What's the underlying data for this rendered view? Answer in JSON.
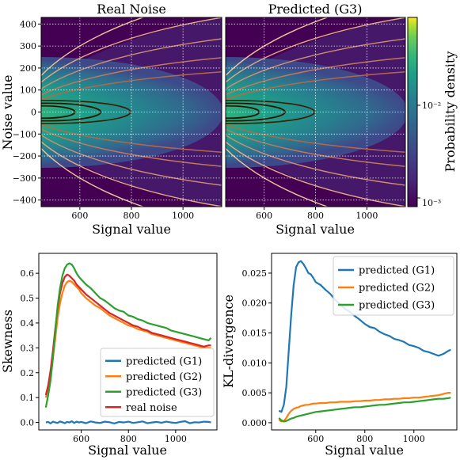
{
  "colors": {
    "g1": "#1f77b4",
    "g2": "#ff7f0e",
    "g3": "#2ca02c",
    "real": "#d62728",
    "legend_border": "#cccccc"
  },
  "chart_data": [
    {
      "type": "heatmap",
      "title": "Real Noise",
      "xlabel": "Signal value",
      "ylabel": "Noise value",
      "xlim": [
        450,
        1150
      ],
      "ylim": [
        -430,
        430
      ],
      "xticks": [
        "600",
        "800",
        "1000"
      ],
      "yticks": [
        "400",
        "300",
        "200",
        "100",
        "0",
        "−100",
        "−200",
        "−300",
        "−400"
      ],
      "grid": true,
      "colormap": "viridis"
    },
    {
      "type": "heatmap",
      "title": "Predicted (G3)",
      "xlabel": "Signal value",
      "ylabel": "",
      "xlim": [
        450,
        1150
      ],
      "ylim": [
        -430,
        430
      ],
      "xticks": [
        "600",
        "800",
        "1000"
      ],
      "grid": true,
      "colormap": "viridis",
      "colorbar": {
        "label": "Probability density",
        "scale": "log",
        "ticks": [
          "10⁻²",
          "10⁻³"
        ]
      }
    },
    {
      "type": "line",
      "xlabel": "Signal value",
      "ylabel": "Skewness",
      "xlim": [
        420,
        1175
      ],
      "ylim": [
        -0.03,
        0.68
      ],
      "xticks": [
        "600",
        "800",
        "1000"
      ],
      "yticks": [
        "0.0",
        "0.1",
        "0.2",
        "0.3",
        "0.4",
        "0.5",
        "0.6"
      ],
      "grid": false,
      "legend": "bottom-right",
      "x": [
        450,
        460,
        470,
        480,
        490,
        500,
        510,
        520,
        530,
        540,
        550,
        560,
        570,
        580,
        590,
        600,
        620,
        640,
        660,
        680,
        700,
        720,
        740,
        760,
        780,
        800,
        820,
        840,
        860,
        880,
        900,
        920,
        940,
        960,
        980,
        1000,
        1020,
        1040,
        1060,
        1080,
        1100,
        1120,
        1140,
        1150
      ],
      "series": [
        {
          "name": "predicted (G1)",
          "values": [
            0.0,
            0.002,
            -0.004,
            0.003,
            0.0,
            -0.002,
            0.004,
            0.001,
            -0.003,
            0.002,
            0.0,
            0.005,
            -0.002,
            0.003,
            0.0,
            0.002,
            -0.003,
            0.004,
            0.0,
            -0.002,
            0.003,
            0.001,
            -0.004,
            0.002,
            0.0,
            0.003,
            -0.002,
            0.001,
            0.004,
            -0.003,
            0.0,
            0.002,
            -0.001,
            0.003,
            0.0,
            -0.002,
            0.002,
            0.005,
            -0.003,
            0.001,
            0.0,
            0.003,
            0.002,
            0.0
          ]
        },
        {
          "name": "predicted (G2)",
          "values": [
            0.1,
            0.14,
            0.19,
            0.26,
            0.34,
            0.42,
            0.48,
            0.52,
            0.55,
            0.565,
            0.57,
            0.565,
            0.555,
            0.545,
            0.535,
            0.52,
            0.5,
            0.485,
            0.47,
            0.46,
            0.445,
            0.43,
            0.42,
            0.41,
            0.4,
            0.39,
            0.385,
            0.375,
            0.37,
            0.365,
            0.355,
            0.35,
            0.345,
            0.34,
            0.335,
            0.33,
            0.325,
            0.32,
            0.315,
            0.31,
            0.305,
            0.3,
            0.3,
            0.3
          ]
        },
        {
          "name": "predicted (G3)",
          "values": [
            0.06,
            0.11,
            0.17,
            0.26,
            0.37,
            0.47,
            0.54,
            0.59,
            0.62,
            0.635,
            0.64,
            0.635,
            0.62,
            0.6,
            0.585,
            0.575,
            0.555,
            0.54,
            0.52,
            0.5,
            0.49,
            0.475,
            0.46,
            0.45,
            0.445,
            0.43,
            0.425,
            0.415,
            0.41,
            0.4,
            0.395,
            0.39,
            0.385,
            0.38,
            0.37,
            0.365,
            0.36,
            0.355,
            0.35,
            0.345,
            0.34,
            0.335,
            0.33,
            0.34
          ]
        },
        {
          "name": "real noise",
          "values": [
            0.11,
            0.15,
            0.21,
            0.29,
            0.38,
            0.46,
            0.52,
            0.56,
            0.585,
            0.595,
            0.59,
            0.58,
            0.57,
            0.555,
            0.545,
            0.535,
            0.515,
            0.5,
            0.485,
            0.47,
            0.455,
            0.44,
            0.43,
            0.42,
            0.41,
            0.4,
            0.39,
            0.385,
            0.375,
            0.37,
            0.36,
            0.355,
            0.35,
            0.345,
            0.34,
            0.335,
            0.33,
            0.325,
            0.32,
            0.315,
            0.31,
            0.305,
            0.31,
            0.31
          ]
        }
      ]
    },
    {
      "type": "line",
      "xlabel": "Signal value",
      "ylabel": "KL-divergence",
      "xlim": [
        420,
        1175
      ],
      "ylim": [
        -0.0012,
        0.0283
      ],
      "xticks": [
        "600",
        "800",
        "1000"
      ],
      "yticks": [
        "0.000",
        "0.005",
        "0.010",
        "0.015",
        "0.020",
        "0.025"
      ],
      "grid": false,
      "legend": "top-right",
      "x": [
        450,
        460,
        470,
        480,
        490,
        500,
        510,
        520,
        530,
        540,
        550,
        560,
        570,
        580,
        590,
        600,
        620,
        640,
        660,
        680,
        700,
        720,
        740,
        760,
        780,
        800,
        820,
        840,
        860,
        880,
        900,
        920,
        940,
        960,
        980,
        1000,
        1020,
        1040,
        1060,
        1080,
        1100,
        1120,
        1140,
        1150
      ],
      "series": [
        {
          "name": "predicted (G1)",
          "values": [
            0.002,
            0.0018,
            0.003,
            0.006,
            0.012,
            0.018,
            0.023,
            0.026,
            0.0268,
            0.027,
            0.0265,
            0.0258,
            0.025,
            0.0248,
            0.0242,
            0.0235,
            0.023,
            0.0222,
            0.0215,
            0.0205,
            0.0198,
            0.019,
            0.0185,
            0.0178,
            0.0172,
            0.0165,
            0.016,
            0.0158,
            0.0152,
            0.0148,
            0.0145,
            0.014,
            0.0138,
            0.0135,
            0.013,
            0.0128,
            0.0125,
            0.012,
            0.0118,
            0.0115,
            0.0112,
            0.0115,
            0.012,
            0.0122
          ]
        },
        {
          "name": "predicted (G2)",
          "values": [
            0.0005,
            0.0002,
            0.0003,
            0.0008,
            0.0015,
            0.002,
            0.0023,
            0.0025,
            0.0026,
            0.0028,
            0.0029,
            0.003,
            0.003,
            0.0031,
            0.0032,
            0.0032,
            0.0033,
            0.0033,
            0.0034,
            0.0034,
            0.0035,
            0.0035,
            0.0035,
            0.0036,
            0.0036,
            0.0037,
            0.0037,
            0.0038,
            0.0038,
            0.0039,
            0.0039,
            0.004,
            0.004,
            0.0041,
            0.0041,
            0.0042,
            0.0042,
            0.0043,
            0.0044,
            0.0045,
            0.0046,
            0.0048,
            0.005,
            0.005
          ]
        },
        {
          "name": "predicted (G3)",
          "values": [
            0.0008,
            0.0004,
            0.0002,
            0.0003,
            0.0005,
            0.0007,
            0.0008,
            0.001,
            0.0011,
            0.0012,
            0.0013,
            0.0014,
            0.0015,
            0.0016,
            0.0017,
            0.0018,
            0.0019,
            0.002,
            0.0021,
            0.0022,
            0.0023,
            0.0024,
            0.0025,
            0.0026,
            0.0026,
            0.0027,
            0.0028,
            0.0029,
            0.003,
            0.003,
            0.0031,
            0.0032,
            0.0033,
            0.0034,
            0.0034,
            0.0035,
            0.0036,
            0.0037,
            0.0038,
            0.0039,
            0.004,
            0.004,
            0.0041,
            0.0042
          ]
        }
      ]
    }
  ]
}
